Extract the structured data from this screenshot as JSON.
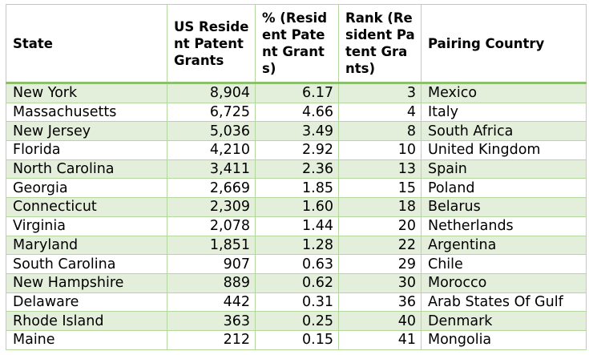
{
  "table": {
    "headers": {
      "state": "State",
      "grants": "US Resident Patent Grants",
      "pct": "% (Resident Patent Grants)",
      "rank": "Rank (Resident Patent Grants)",
      "country": "Pairing Country"
    },
    "rows": [
      {
        "state": "New York",
        "grants": "8,904",
        "pct": "6.17",
        "rank": "3",
        "country": "Mexico"
      },
      {
        "state": "Massachusetts",
        "grants": "6,725",
        "pct": "4.66",
        "rank": "4",
        "country": "Italy"
      },
      {
        "state": "New Jersey",
        "grants": "5,036",
        "pct": "3.49",
        "rank": "8",
        "country": "South Africa"
      },
      {
        "state": "Florida",
        "grants": "4,210",
        "pct": "2.92",
        "rank": "10",
        "country": "United Kingdom"
      },
      {
        "state": "North Carolina",
        "grants": "3,411",
        "pct": "2.36",
        "rank": "13",
        "country": "Spain"
      },
      {
        "state": "Georgia",
        "grants": "2,669",
        "pct": "1.85",
        "rank": "15",
        "country": "Poland"
      },
      {
        "state": "Connecticut",
        "grants": "2,309",
        "pct": "1.60",
        "rank": "18",
        "country": "Belarus"
      },
      {
        "state": "Virginia",
        "grants": "2,078",
        "pct": "1.44",
        "rank": "20",
        "country": "Netherlands"
      },
      {
        "state": "Maryland",
        "grants": "1,851",
        "pct": "1.28",
        "rank": "22",
        "country": "Argentina"
      },
      {
        "state": "South Carolina",
        "grants": "907",
        "pct": "0.63",
        "rank": "29",
        "country": "Chile"
      },
      {
        "state": "New Hampshire",
        "grants": "889",
        "pct": "0.62",
        "rank": "30",
        "country": "Morocco"
      },
      {
        "state": "Delaware",
        "grants": "442",
        "pct": "0.31",
        "rank": "36",
        "country": "Arab States Of Gulf"
      },
      {
        "state": "Rhode Island",
        "grants": "363",
        "pct": "0.25",
        "rank": "40",
        "country": "Denmark"
      },
      {
        "state": "Maine",
        "grants": "212",
        "pct": "0.15",
        "rank": "41",
        "country": "Mongolia"
      }
    ]
  },
  "colors": {
    "band_fill": "#e3efda",
    "grid_line": "#b4d7a0",
    "header_rule": "#8cc06e"
  }
}
